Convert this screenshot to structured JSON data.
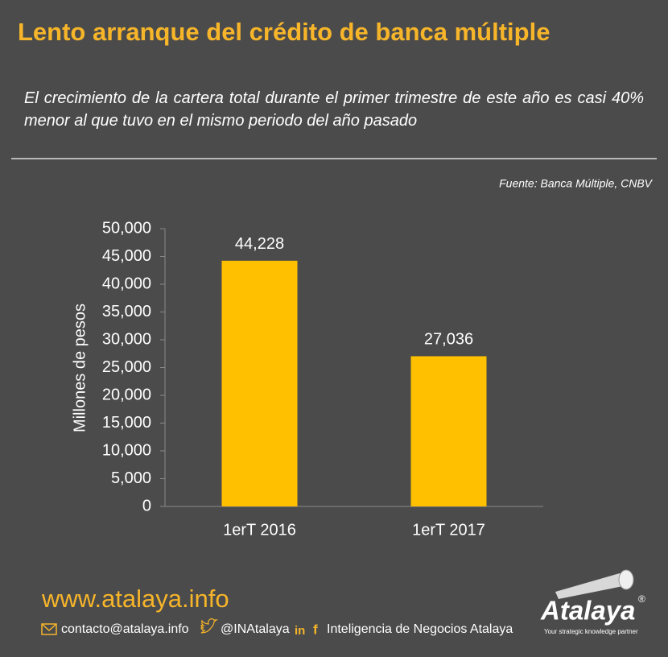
{
  "chart_data": {
    "type": "bar",
    "title": "Lento arranque del crédito de banca múltiple",
    "subtitle": "El crecimiento de la cartera total durante el primer trimestre de este año es casi 40% menor al que tuvo en el mismo periodo del año pasado",
    "source": "Fuente: Banca Múltiple, CNBV",
    "y_label": "Millones de pesos",
    "categories": [
      "1erT 2016",
      "1erT 2017"
    ],
    "values": [
      44228,
      27036
    ],
    "value_labels": [
      "44,228",
      "27,036"
    ],
    "color": "#ffc000",
    "ylim": [
      0,
      50000
    ],
    "yticks": [
      0,
      {
        "value": 5000,
        "label": "5,000"
      },
      {
        "value": 10000,
        "label": "10,000"
      },
      {
        "value": 15000,
        "label": "15,000"
      },
      {
        "value": 20000,
        "label": "20,000"
      },
      {
        "value": 25000,
        "label": "25,000"
      },
      {
        "value": 30000,
        "label": "30,000"
      },
      {
        "value": 35000,
        "label": "35,000"
      },
      {
        "value": 40000,
        "label": "40,000"
      },
      {
        "value": 45000,
        "label": "45,000"
      },
      {
        "value": 50000,
        "label": "50,000"
      }
    ],
    "grid": false
  },
  "footer": {
    "website": "www.atalaya.info",
    "email": "contacto@atalaya.info",
    "twitter": "@INAtalaya",
    "company": "Inteligencia de Negocios Atalaya"
  },
  "logo": {
    "name": "Atalaya",
    "mark": "®",
    "tagline": "Your strategic knowledge partner"
  }
}
